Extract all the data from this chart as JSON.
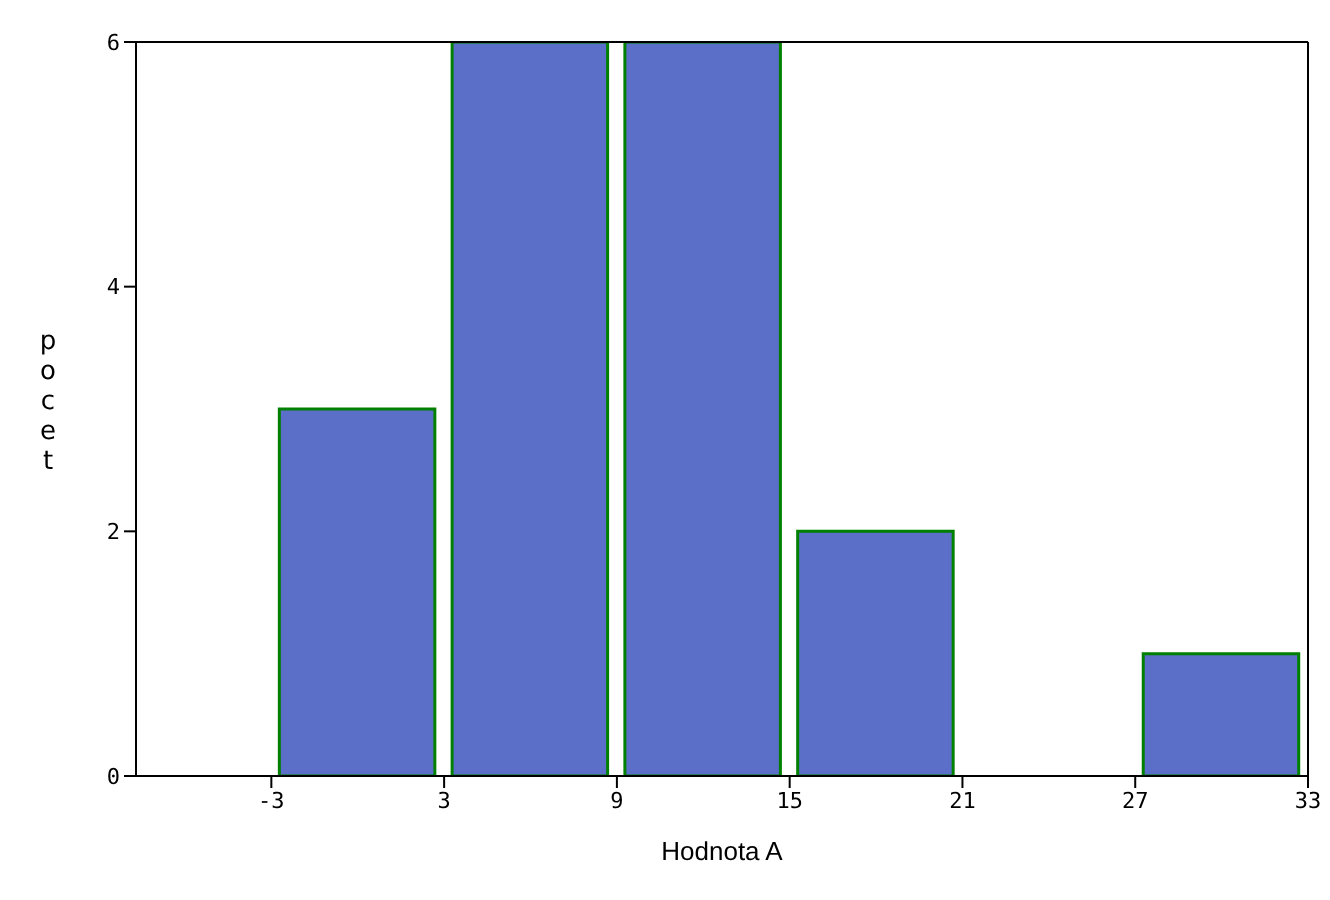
{
  "chart_data": {
    "type": "histogram",
    "xlabel": "Hodnota A",
    "ylabel": "pocet",
    "bins": [
      -3,
      3,
      9,
      15,
      21,
      27,
      33
    ],
    "values": [
      3,
      6,
      6,
      2,
      0,
      1
    ],
    "color": "#5b6fc9",
    "xlim": [
      -7.7,
      33
    ],
    "xticks": [
      -3,
      3,
      9,
      15,
      21,
      27,
      33
    ],
    "ylim": [
      0,
      6
    ],
    "yticks": [
      0,
      2,
      4,
      6
    ]
  }
}
